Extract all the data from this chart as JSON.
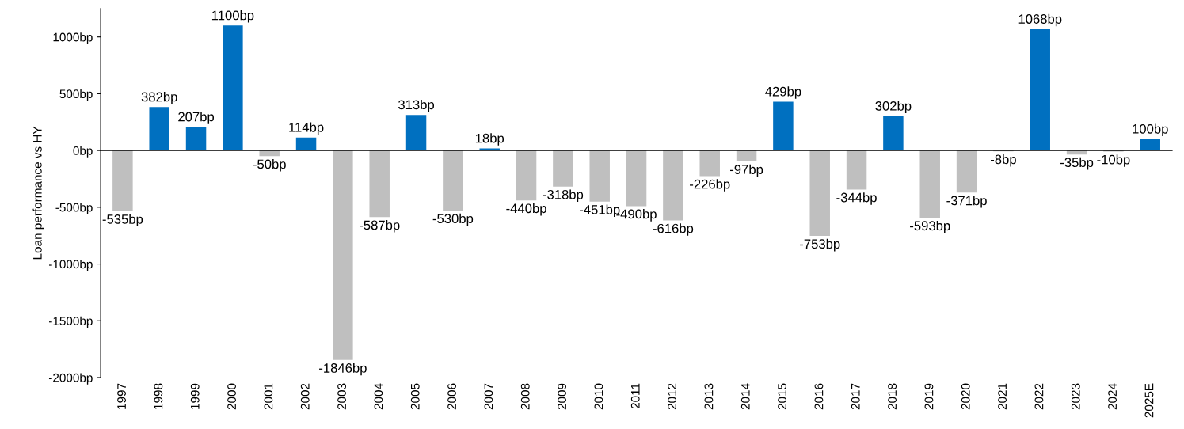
{
  "chart_data": {
    "type": "bar",
    "ylabel": "Loan performance vs HY",
    "categories": [
      "1997",
      "1998",
      "1999",
      "2000",
      "2001",
      "2002",
      "2003",
      "2004",
      "2005",
      "2006",
      "2007",
      "2008",
      "2009",
      "2010",
      "2011",
      "2012",
      "2013",
      "2014",
      "2015",
      "2016",
      "2017",
      "2018",
      "2019",
      "2020",
      "2021",
      "2022",
      "2023",
      "2024",
      "2025E"
    ],
    "values": [
      -535,
      382,
      207,
      1100,
      -50,
      114,
      -1846,
      -587,
      313,
      -530,
      18,
      -440,
      -318,
      -451,
      -490,
      -616,
      -226,
      -97,
      429,
      -753,
      -344,
      302,
      -593,
      -371,
      -8,
      1068,
      -35,
      -10,
      100
    ],
    "colors": [
      "#bfbfbf",
      "#0070c0",
      "#0070c0",
      "#0070c0",
      "#bfbfbf",
      "#0070c0",
      "#bfbfbf",
      "#bfbfbf",
      "#0070c0",
      "#bfbfbf",
      "#0070c0",
      "#bfbfbf",
      "#bfbfbf",
      "#bfbfbf",
      "#bfbfbf",
      "#bfbfbf",
      "#bfbfbf",
      "#bfbfbf",
      "#0070c0",
      "#bfbfbf",
      "#bfbfbf",
      "#0070c0",
      "#bfbfbf",
      "#bfbfbf",
      "#bfbfbf",
      "#0070c0",
      "#bfbfbf",
      "#bfbfbf",
      "#0070c0"
    ],
    "value_labels": [
      "-535bp",
      "382bp",
      "207bp",
      "1100bp",
      "-50bp",
      "114bp",
      "-1846bp",
      "-587bp",
      "313bp",
      "-530bp",
      "18bp",
      "-440bp",
      "-318bp",
      "-451bp",
      "-490bp",
      "-616bp",
      "-226bp",
      "-97bp",
      "429bp",
      "-753bp",
      "-344bp",
      "302bp",
      "-593bp",
      "-371bp",
      "-8bp",
      "1068bp",
      "-35bp",
      "-10bp",
      "100bp"
    ],
    "ylim": [
      -2000,
      1250
    ],
    "yticks": [
      {
        "value": -2000,
        "label": "-2000bp"
      },
      {
        "value": -1500,
        "label": "-1500bp"
      },
      {
        "value": -1000,
        "label": "-1000bp"
      },
      {
        "value": -500,
        "label": "-500bp"
      },
      {
        "value": 0,
        "label": "0bp"
      },
      {
        "value": 500,
        "label": "500bp"
      },
      {
        "value": 1000,
        "label": "1000bp"
      }
    ],
    "legend": false
  }
}
